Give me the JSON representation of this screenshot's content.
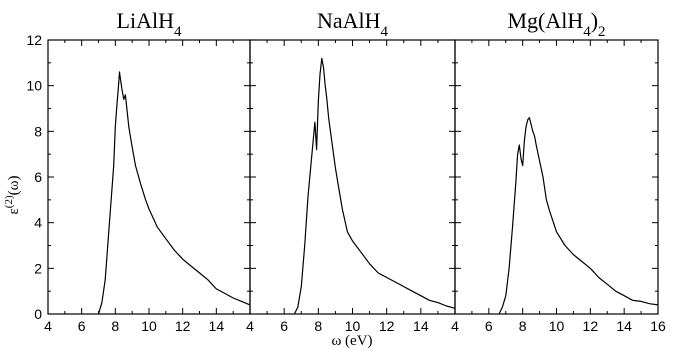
{
  "chart_data": [
    {
      "type": "line",
      "title": "LiAlH",
      "title_sub": "4",
      "xlim": [
        4,
        16
      ],
      "ylim": [
        0,
        12
      ],
      "x_ticks": [
        4,
        6,
        8,
        10,
        12,
        14
      ],
      "y_ticks": [
        0,
        2,
        4,
        6,
        8,
        10,
        12
      ],
      "x": [
        7.0,
        7.2,
        7.4,
        7.5,
        7.7,
        7.9,
        8.0,
        8.1,
        8.2,
        8.25,
        8.3,
        8.4,
        8.5,
        8.6,
        8.7,
        8.8,
        9.0,
        9.2,
        9.5,
        9.8,
        10.0,
        10.5,
        11.0,
        11.5,
        12.0,
        12.5,
        13.0,
        13.5,
        14.0,
        14.5,
        15.0,
        15.5,
        16.0
      ],
      "y": [
        0.0,
        0.5,
        1.5,
        2.5,
        4.5,
        6.5,
        8.2,
        9.2,
        10.1,
        10.6,
        10.3,
        9.8,
        9.4,
        9.6,
        8.9,
        8.2,
        7.3,
        6.5,
        5.7,
        5.0,
        4.6,
        3.8,
        3.3,
        2.8,
        2.4,
        2.1,
        1.8,
        1.5,
        1.1,
        0.9,
        0.7,
        0.55,
        0.4
      ]
    },
    {
      "type": "line",
      "title": "NaAlH",
      "title_sub": "4",
      "xlim": [
        4,
        16
      ],
      "ylim": [
        0,
        12
      ],
      "x_ticks": [
        4,
        6,
        8,
        10,
        12,
        14
      ],
      "y_ticks": [],
      "x": [
        6.6,
        6.8,
        7.0,
        7.2,
        7.4,
        7.6,
        7.8,
        7.9,
        8.0,
        8.1,
        8.2,
        8.3,
        8.4,
        8.5,
        8.6,
        8.8,
        9.0,
        9.2,
        9.4,
        9.7,
        10.0,
        10.5,
        11.0,
        11.5,
        12.0,
        12.5,
        13.0,
        13.5,
        14.0,
        14.5,
        15.0,
        15.5,
        16.0
      ],
      "y": [
        0.0,
        0.3,
        1.2,
        3.0,
        5.2,
        6.8,
        8.4,
        7.2,
        9.3,
        10.5,
        11.2,
        10.8,
        10.0,
        9.4,
        8.6,
        7.5,
        6.4,
        5.5,
        4.6,
        3.6,
        3.2,
        2.7,
        2.2,
        1.8,
        1.6,
        1.4,
        1.2,
        1.0,
        0.8,
        0.6,
        0.5,
        0.35,
        0.25
      ]
    },
    {
      "type": "line",
      "title": "Mg(AlH",
      "title_sub": "4",
      "title_end": ")",
      "title_sub2": "2",
      "xlim": [
        4,
        16
      ],
      "ylim": [
        0,
        12
      ],
      "x_ticks": [
        4,
        6,
        8,
        10,
        12,
        14,
        16
      ],
      "y_ticks": [],
      "x": [
        6.6,
        6.8,
        7.0,
        7.2,
        7.4,
        7.6,
        7.7,
        7.8,
        7.9,
        8.0,
        8.1,
        8.2,
        8.3,
        8.4,
        8.5,
        8.6,
        8.7,
        8.8,
        9.0,
        9.2,
        9.4,
        9.6,
        10.0,
        10.5,
        11.0,
        11.5,
        12.0,
        12.5,
        13.0,
        13.5,
        14.0,
        14.5,
        15.0,
        15.5,
        16.0
      ],
      "y": [
        0.0,
        0.3,
        0.8,
        2.0,
        3.8,
        5.8,
        7.0,
        7.4,
        6.8,
        6.5,
        7.6,
        8.2,
        8.5,
        8.6,
        8.3,
        8.0,
        7.8,
        7.4,
        6.7,
        6.0,
        5.0,
        4.5,
        3.6,
        3.0,
        2.6,
        2.3,
        2.0,
        1.6,
        1.3,
        1.0,
        0.8,
        0.6,
        0.55,
        0.45,
        0.4
      ]
    }
  ],
  "axes": {
    "xlabel": "ω (eV)",
    "ylabel_main": "ε",
    "ylabel_sup": "(2)",
    "ylabel_arg": "(ω)"
  }
}
